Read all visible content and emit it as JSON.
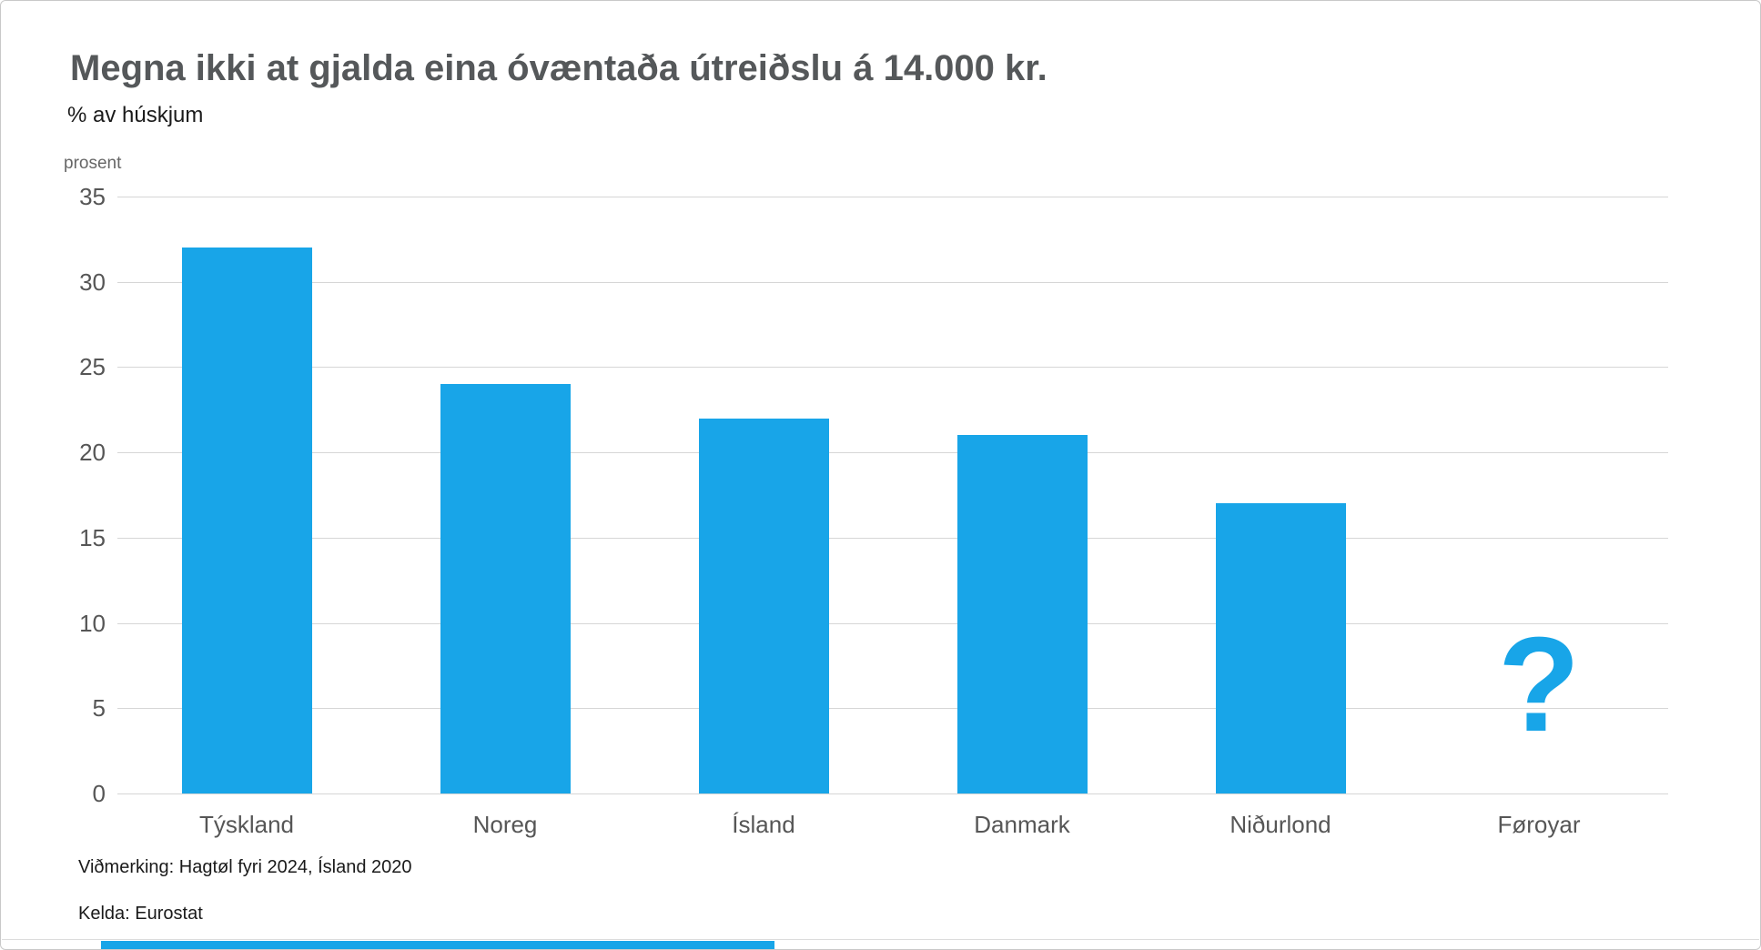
{
  "page": {
    "title": "Megna ikki at gjalda eina óvæntaða útreiðslu á 14.000 kr.",
    "subtitle": "% av húskjum"
  },
  "notes": {
    "remark": "Viðmerking: Hagtøl fyri 2024, Ísland 2020",
    "source": "Kelda: Eurostat"
  },
  "colors": {
    "bar": "#18a5e8",
    "missing_marker": "#18a5e8",
    "gridline": "#d6d6d6",
    "axis_text": "#565656",
    "title_text": "#55585a",
    "note_text": "#1a1a1a",
    "card_border": "#c9c9c9"
  },
  "chart_data": {
    "type": "bar",
    "title": "Megna ikki at gjalda eina óvæntaða útreiðslu á 14.000 kr.",
    "subtitle": "% av húskjum",
    "ylabel": "prosent",
    "xlabel": "",
    "categories": [
      "Týskland",
      "Noreg",
      "Ísland",
      "Danmark",
      "Niðurlond",
      "Føroyar"
    ],
    "values": [
      32,
      24,
      22,
      21,
      17,
      null
    ],
    "missing_value_marker": "?",
    "yticks": [
      0,
      5,
      10,
      15,
      20,
      25,
      30,
      35
    ],
    "ylim": [
      0,
      35
    ],
    "grid": true,
    "legend": false
  }
}
